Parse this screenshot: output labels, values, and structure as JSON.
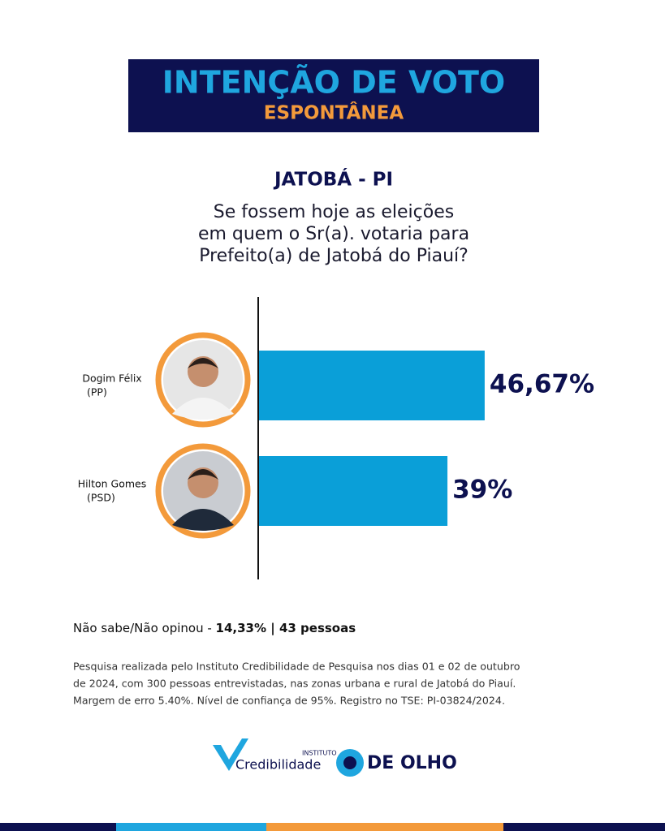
{
  "header": {
    "title": "INTENÇÃO DE VOTO",
    "subtitle": "ESPONTÂNEA"
  },
  "location": "JATOBÁ - PI",
  "question": [
    "Se fossem hoje as eleições",
    "em quem o Sr(a). votaria para",
    "Prefeito(a) de Jatobá do Piauí?"
  ],
  "chart_data": {
    "type": "bar",
    "orientation": "horizontal",
    "categories": [
      "Dogim Félix",
      "Hilton Gomes"
    ],
    "parties": [
      "(PP)",
      "(PSD)"
    ],
    "values": [
      46.67,
      39
    ],
    "value_labels": [
      "46,67%",
      "39%"
    ],
    "color": "#0a9fd8",
    "xlim": [
      0,
      84
    ]
  },
  "undecided": {
    "label": "Não sabe/Não opinou - ",
    "value": "14,33% | 43 pessoas"
  },
  "methodology": [
    "Pesquisa realizada pelo Instituto Credibilidade de Pesquisa nos dias 01 e 02 de outubro",
    "de 2024, com 300 pessoas entrevistadas, nas zonas urbana e rural de Jatobá do Piauí.",
    "Margem de erro 5.40%. Nível de confiança de 95%. Registro no TSE: PI-03824/2024."
  ],
  "logos": {
    "institute_small": "INSTITUTO",
    "institute": "Credibilidade",
    "media": "DE OLHO"
  }
}
